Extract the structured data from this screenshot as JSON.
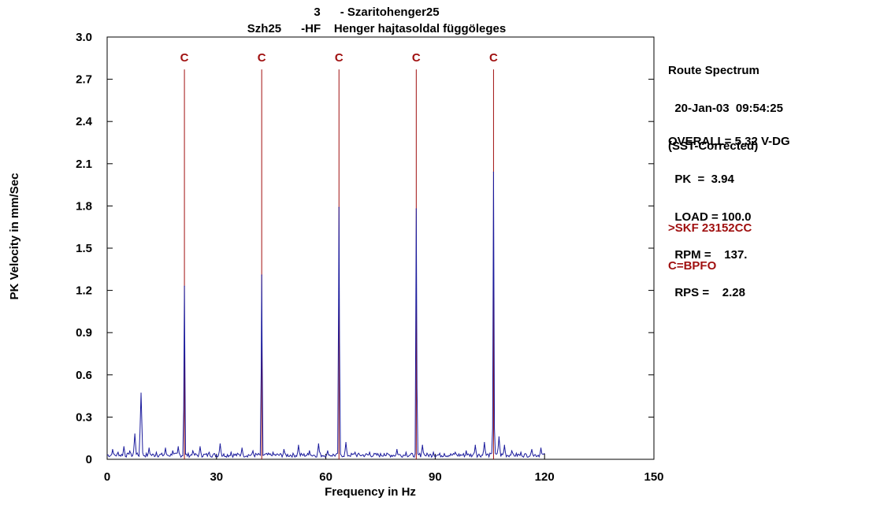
{
  "chart_data": {
    "type": "line",
    "title_line1": "3      - Szaritohenger25",
    "title_line2": "Szh25      -HF    Henger hajtasoldal függöleges",
    "xlabel": "Frequency in Hz",
    "ylabel": "PK Velocity in mm/Sec",
    "xlim": [
      0,
      150
    ],
    "ylim": [
      0,
      3.0
    ],
    "x_ticks": [
      "0",
      "30",
      "60",
      "90",
      "120",
      "150"
    ],
    "y_ticks": [
      "0",
      "0.3",
      "0.6",
      "0.9",
      "1.2",
      "1.5",
      "1.8",
      "2.1",
      "2.4",
      "2.7",
      "3.0"
    ],
    "series_color": "#1a1a9c",
    "marker_color": "#a01010",
    "fault_markers": [
      {
        "label": "C",
        "x": 21.2
      },
      {
        "label": "C",
        "x": 42.4
      },
      {
        "label": "C",
        "x": 63.6
      },
      {
        "label": "C",
        "x": 84.8
      },
      {
        "label": "C",
        "x": 106.0
      }
    ],
    "peaks": [
      {
        "x": 1.5,
        "y": 0.07
      },
      {
        "x": 3.0,
        "y": 0.05
      },
      {
        "x": 4.6,
        "y": 0.09
      },
      {
        "x": 6.2,
        "y": 0.06
      },
      {
        "x": 7.6,
        "y": 0.18
      },
      {
        "x": 9.3,
        "y": 0.47
      },
      {
        "x": 11.5,
        "y": 0.08
      },
      {
        "x": 13.5,
        "y": 0.05
      },
      {
        "x": 16.0,
        "y": 0.08
      },
      {
        "x": 18.0,
        "y": 0.06
      },
      {
        "x": 19.5,
        "y": 0.09
      },
      {
        "x": 21.2,
        "y": 1.23
      },
      {
        "x": 23.5,
        "y": 0.06
      },
      {
        "x": 25.5,
        "y": 0.09
      },
      {
        "x": 28.0,
        "y": 0.05
      },
      {
        "x": 31.0,
        "y": 0.11
      },
      {
        "x": 34.0,
        "y": 0.05
      },
      {
        "x": 37.0,
        "y": 0.08
      },
      {
        "x": 40.0,
        "y": 0.06
      },
      {
        "x": 42.4,
        "y": 1.31
      },
      {
        "x": 45.5,
        "y": 0.05
      },
      {
        "x": 48.5,
        "y": 0.07
      },
      {
        "x": 52.5,
        "y": 0.1
      },
      {
        "x": 55.5,
        "y": 0.06
      },
      {
        "x": 58.0,
        "y": 0.11
      },
      {
        "x": 60.5,
        "y": 0.06
      },
      {
        "x": 63.6,
        "y": 1.79
      },
      {
        "x": 65.5,
        "y": 0.12
      },
      {
        "x": 68.0,
        "y": 0.05
      },
      {
        "x": 72.0,
        "y": 0.05
      },
      {
        "x": 76.0,
        "y": 0.04
      },
      {
        "x": 79.5,
        "y": 0.07
      },
      {
        "x": 82.0,
        "y": 0.05
      },
      {
        "x": 84.8,
        "y": 1.78
      },
      {
        "x": 86.5,
        "y": 0.1
      },
      {
        "x": 89.5,
        "y": 0.05
      },
      {
        "x": 92.5,
        "y": 0.04
      },
      {
        "x": 95.5,
        "y": 0.05
      },
      {
        "x": 98.5,
        "y": 0.06
      },
      {
        "x": 101.0,
        "y": 0.1
      },
      {
        "x": 103.5,
        "y": 0.12
      },
      {
        "x": 106.0,
        "y": 2.04
      },
      {
        "x": 107.5,
        "y": 0.16
      },
      {
        "x": 109.0,
        "y": 0.1
      },
      {
        "x": 111.0,
        "y": 0.06
      },
      {
        "x": 113.5,
        "y": 0.05
      },
      {
        "x": 116.5,
        "y": 0.07
      },
      {
        "x": 119.0,
        "y": 0.08
      }
    ],
    "x_end": 120
  },
  "info": {
    "line1": "Route Spectrum",
    "line2": "  20-Jan-03  09:54:25",
    "line3": "(SST-Corrected)",
    "overall": "OVERALL= 5.32 V-DG",
    "pk": "  PK  =  3.94",
    "load": "  LOAD = 100.0",
    "rpm": "  RPM =    137.",
    "rps": "  RPS =    2.28",
    "bearing": ">SKF 23152CC",
    "fault_def": "C=BPFO"
  }
}
